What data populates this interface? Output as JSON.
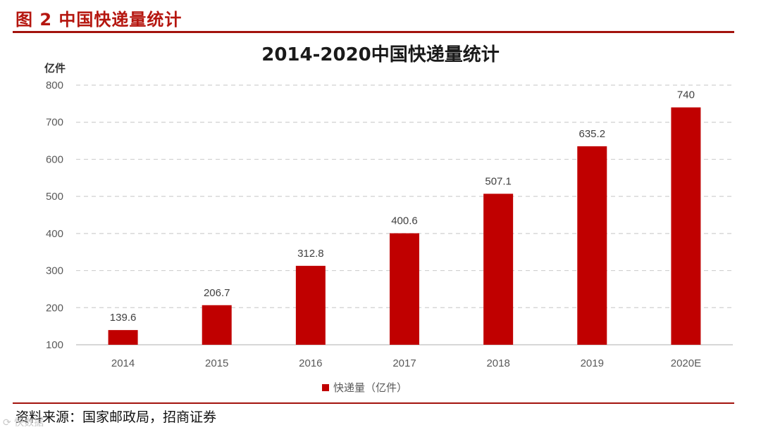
{
  "figure_label": "图 2  中国快递量统计",
  "source": "资料来源：国家邮政局，招商证券",
  "watermark": "⟳ 快数据",
  "colors": {
    "accent": "#a3130d",
    "bar": "#c00000",
    "grid": "#d0d0d0",
    "text": "#595959"
  },
  "chart_data": {
    "type": "bar",
    "title": "2014-2020中国快递量统计",
    "ylabel": "亿件",
    "xlabel": "",
    "categories": [
      "2014",
      "2015",
      "2016",
      "2017",
      "2018",
      "2019",
      "2020E"
    ],
    "series": [
      {
        "name": "快递量（亿件）",
        "values": [
          139.6,
          206.7,
          312.8,
          400.6,
          507.1,
          635.2,
          740
        ],
        "labels": [
          "139.6",
          "206.7",
          "312.8",
          "400.6",
          "507.1",
          "635.2",
          "740"
        ]
      }
    ],
    "ylim": [
      100,
      800
    ],
    "yticks": [
      100,
      200,
      300,
      400,
      500,
      600,
      700,
      800
    ],
    "grid": "dashed-horizontal",
    "legend_position": "bottom-center"
  }
}
